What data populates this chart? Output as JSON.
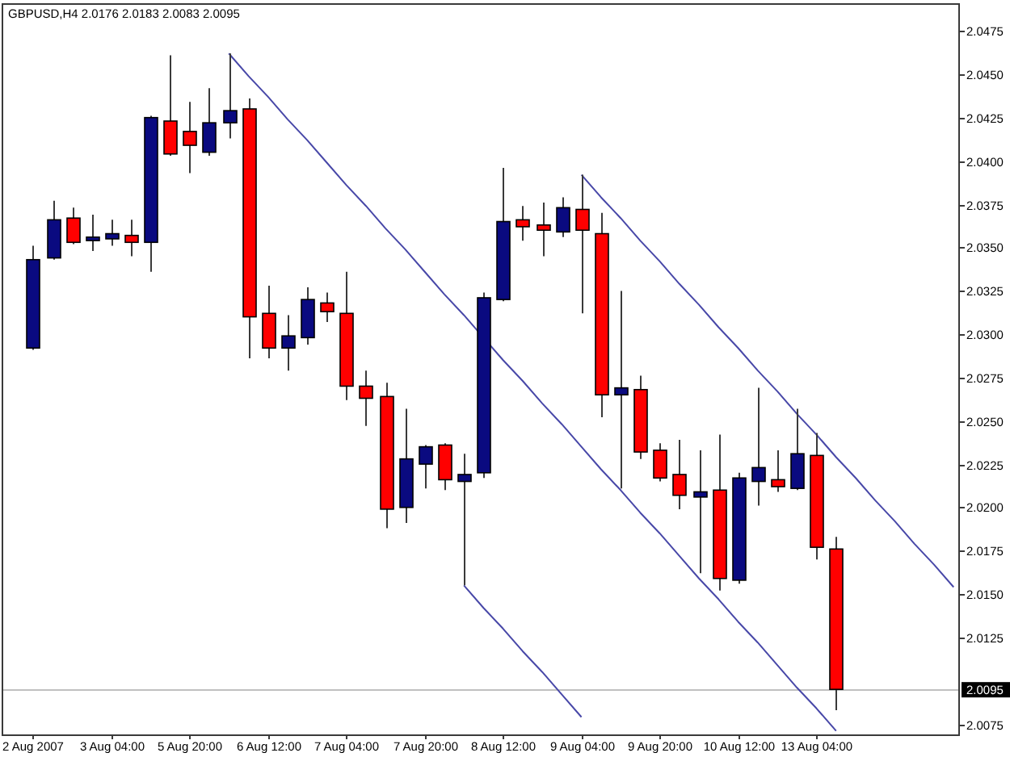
{
  "chart_data": {
    "type": "candlestick",
    "title": "GBPUSD,H4 2.0176 2.0183 2.0083 2.0095",
    "categories": [
      "2 Aug 2007",
      null,
      null,
      null,
      "3 Aug 04:00",
      null,
      null,
      null,
      "5 Aug 20:00",
      null,
      null,
      null,
      "6 Aug 12:00",
      null,
      null,
      null,
      "7 Aug 04:00",
      null,
      null,
      null,
      "7 Aug 20:00",
      null,
      null,
      null,
      "8 Aug 12:00",
      null,
      null,
      null,
      "9 Aug 04:00",
      null,
      null,
      null,
      "9 Aug 20:00",
      null,
      null,
      null,
      "10 Aug 12:00",
      null,
      null,
      null,
      "13 Aug 04:00",
      null,
      null,
      null,
      null,
      null,
      null,
      null
    ],
    "ohlc": [
      [
        2.0292,
        2.0351,
        2.0291,
        2.0343
      ],
      [
        2.0344,
        2.0377,
        2.0343,
        2.0366
      ],
      [
        2.0367,
        2.0373,
        2.0352,
        2.0353
      ],
      [
        2.0354,
        2.0369,
        2.0348,
        2.0356
      ],
      [
        2.0355,
        2.0366,
        2.0351,
        2.0358
      ],
      [
        2.0357,
        2.0366,
        2.0345,
        2.0353
      ],
      [
        2.0353,
        2.0426,
        2.0336,
        2.0425
      ],
      [
        2.0423,
        2.0461,
        2.0403,
        2.0404
      ],
      [
        2.0417,
        2.0434,
        2.0393,
        2.0409
      ],
      [
        2.0405,
        2.0442,
        2.0403,
        2.0422
      ],
      [
        2.0422,
        2.0462,
        2.0413,
        2.0429
      ],
      [
        2.043,
        2.0436,
        2.0286,
        2.031
      ],
      [
        2.0312,
        2.0328,
        2.0286,
        2.0292
      ],
      [
        2.0292,
        2.0311,
        2.0279,
        2.0299
      ],
      [
        2.0298,
        2.0327,
        2.0294,
        2.032
      ],
      [
        2.0318,
        2.0324,
        2.0307,
        2.0313
      ],
      [
        2.0312,
        2.0336,
        2.0262,
        2.027
      ],
      [
        2.027,
        2.0279,
        2.0247,
        2.0263
      ],
      [
        2.0264,
        2.0272,
        2.0188,
        2.0199
      ],
      [
        2.02,
        2.0257,
        2.0191,
        2.0228
      ],
      [
        2.0225,
        2.0236,
        2.0211,
        2.0235
      ],
      [
        2.0236,
        2.0237,
        2.021,
        2.0216
      ],
      [
        2.0215,
        2.0231,
        2.0155,
        2.0219
      ],
      [
        2.022,
        2.0324,
        2.0217,
        2.0321
      ],
      [
        2.032,
        2.0396,
        2.0319,
        2.0365
      ],
      [
        2.0366,
        2.0374,
        2.0354,
        2.0362
      ],
      [
        2.0363,
        2.0376,
        2.0345,
        2.036
      ],
      [
        2.0359,
        2.0379,
        2.0356,
        2.0373
      ],
      [
        2.0372,
        2.0392,
        2.0312,
        2.036
      ],
      [
        2.0358,
        2.037,
        2.0252,
        2.0265
      ],
      [
        2.0265,
        2.0325,
        2.0211,
        2.0269
      ],
      [
        2.0268,
        2.0276,
        2.0228,
        2.0232
      ],
      [
        2.0233,
        2.0237,
        2.0215,
        2.0217
      ],
      [
        2.0219,
        2.0239,
        2.0199,
        2.0207
      ],
      [
        2.0206,
        2.0233,
        2.0162,
        2.0209
      ],
      [
        2.021,
        2.0242,
        2.0152,
        2.0159
      ],
      [
        2.0158,
        2.022,
        2.0156,
        2.0217
      ],
      [
        2.0215,
        2.0269,
        2.0201,
        2.0223
      ],
      [
        2.0216,
        2.0233,
        2.0209,
        2.0212
      ],
      [
        2.0211,
        2.0257,
        2.021,
        2.0231
      ],
      [
        2.023,
        2.0243,
        2.017,
        2.0177
      ],
      [
        2.0176,
        2.0183,
        2.0083,
        2.0095
      ],
      null,
      null,
      null,
      null,
      null,
      null
    ],
    "colors": [
      "#0a0a80",
      "#0a0a80",
      "#ff0000",
      "#0a0a80",
      "#0a0a80",
      "#ff0000",
      "#0a0a80",
      "#ff0000",
      "#ff0000",
      "#0a0a80",
      "#0a0a80",
      "#ff0000",
      "#ff0000",
      "#0a0a80",
      "#0a0a80",
      "#ff0000",
      "#ff0000",
      "#ff0000",
      "#ff0000",
      "#0a0a80",
      "#0a0a80",
      "#ff0000",
      "#0a0a80",
      "#0a0a80",
      "#0a0a80",
      "#ff0000",
      "#ff0000",
      "#0a0a80",
      "#ff0000",
      "#ff0000",
      "#0a0a80",
      "#ff0000",
      "#ff0000",
      "#ff0000",
      "#0a0a80",
      "#ff0000",
      "#0a0a80",
      "#0a0a80",
      "#ff0000",
      "#0a0a80",
      "#ff0000",
      "#ff0000",
      null,
      null,
      null,
      null,
      null,
      null
    ],
    "series": [
      {
        "type": "line",
        "color": "#4848a8",
        "values": [
          null,
          null,
          null,
          null,
          null,
          null,
          null,
          null,
          null,
          null,
          2.0462,
          2.0449,
          2.0437,
          2.0424,
          2.0412,
          2.0399,
          2.0386,
          2.0374,
          2.0361,
          2.0349,
          2.0336,
          2.0323,
          2.0311,
          2.0298,
          2.0285,
          2.0273,
          2.026,
          2.0248,
          2.0235,
          2.0222,
          2.021,
          2.0197,
          2.0185,
          2.0172,
          2.0159,
          2.0147,
          2.0134,
          2.0122,
          2.0109,
          2.0096,
          2.0084,
          2.0071,
          null,
          null,
          null,
          null,
          null,
          null
        ]
      },
      {
        "type": "line",
        "color": "#4848a8",
        "values": [
          null,
          null,
          null,
          null,
          null,
          null,
          null,
          null,
          null,
          null,
          null,
          null,
          null,
          null,
          null,
          null,
          null,
          null,
          null,
          null,
          null,
          null,
          2.0155,
          2.0142,
          2.013,
          2.0117,
          2.0105,
          2.0092,
          2.0079,
          null,
          null,
          null,
          null,
          null,
          null,
          null,
          null,
          null,
          null,
          null,
          null,
          null,
          null,
          null,
          null,
          null,
          null,
          null
        ]
      },
      {
        "type": "line",
        "color": "#4848a8",
        "values": [
          null,
          null,
          null,
          null,
          null,
          null,
          null,
          null,
          null,
          null,
          null,
          null,
          null,
          null,
          null,
          null,
          null,
          null,
          null,
          null,
          null,
          null,
          null,
          null,
          null,
          null,
          null,
          null,
          2.0392,
          2.0379,
          2.0367,
          2.0354,
          2.0342,
          2.0329,
          2.0317,
          2.0304,
          2.0292,
          2.0279,
          2.0267,
          2.0254,
          2.0242,
          2.0229,
          2.0217,
          2.0204,
          2.0192,
          2.0179,
          2.0167,
          2.0154
        ]
      }
    ],
    "ylim": [
      2.0069,
      2.0491
    ],
    "yticks": [
      2.0075,
      2.0125,
      {
        "value": 2.015,
        "label": "2.0150"
      },
      2.0175,
      {
        "value": 2.02,
        "label": "2.0200"
      },
      2.0225,
      {
        "value": 2.025,
        "label": "2.0250"
      },
      2.0275,
      {
        "value": 2.03,
        "label": "2.0300"
      },
      2.0325,
      {
        "value": 2.035,
        "label": "2.0350"
      },
      2.0375,
      {
        "value": 2.04,
        "label": "2.0400"
      },
      2.0425,
      {
        "value": 2.045,
        "label": "2.0450"
      },
      2.0475
    ],
    "ref_lines": [
      {
        "axis": "y",
        "value": 2.0095,
        "label": "2.0095",
        "color": "#c0c0c0"
      }
    ]
  }
}
